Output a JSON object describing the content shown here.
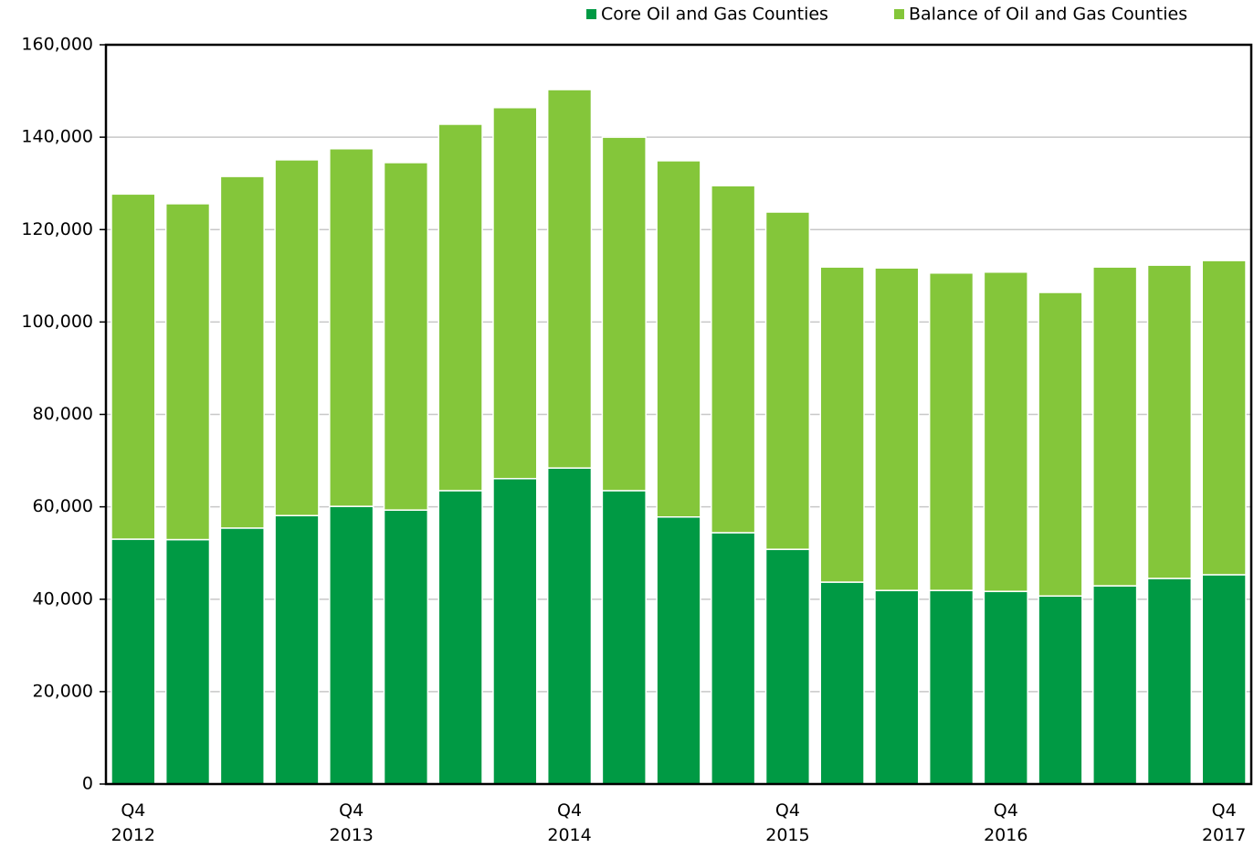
{
  "chart_data": {
    "type": "stacked-bar",
    "categories": [
      "Q4\n2012",
      null,
      null,
      null,
      "Q4\n2013",
      null,
      null,
      null,
      "Q4\n2014",
      null,
      null,
      null,
      "Q4\n2015",
      null,
      null,
      null,
      "Q4\n2016",
      null,
      null,
      null,
      "Q4\n2017"
    ],
    "series": [
      {
        "name": "Core Oil and Gas Counties",
        "color": "#009a44",
        "values": [
          53000,
          52900,
          55400,
          58100,
          60100,
          59300,
          63500,
          66100,
          68400,
          63500,
          57800,
          54400,
          50800,
          43700,
          41900,
          41900,
          41700,
          40700,
          42900,
          44500,
          45300
        ]
      },
      {
        "name": "Balance of Oil and Gas Counties",
        "color": "#84c63a",
        "values": [
          74700,
          72700,
          76100,
          77000,
          77400,
          75200,
          79300,
          80300,
          81900,
          76500,
          77100,
          75100,
          73000,
          68200,
          69800,
          68700,
          69100,
          65700,
          69000,
          67800,
          68000
        ]
      }
    ],
    "ylim": [
      0,
      160000
    ],
    "yticks": [
      0,
      {
        "value": 20000,
        "label": "20,000"
      },
      {
        "value": 40000,
        "label": "40,000"
      },
      {
        "value": 60000,
        "label": "60,000"
      },
      {
        "value": 80000,
        "label": "80,000"
      },
      {
        "value": 100000,
        "label": "100,000"
      },
      {
        "value": 120000,
        "label": "120,000"
      },
      {
        "value": 140000,
        "label": "140,000"
      },
      {
        "value": 160000,
        "label": "160,000"
      }
    ],
    "grid": true,
    "legend": "top"
  }
}
